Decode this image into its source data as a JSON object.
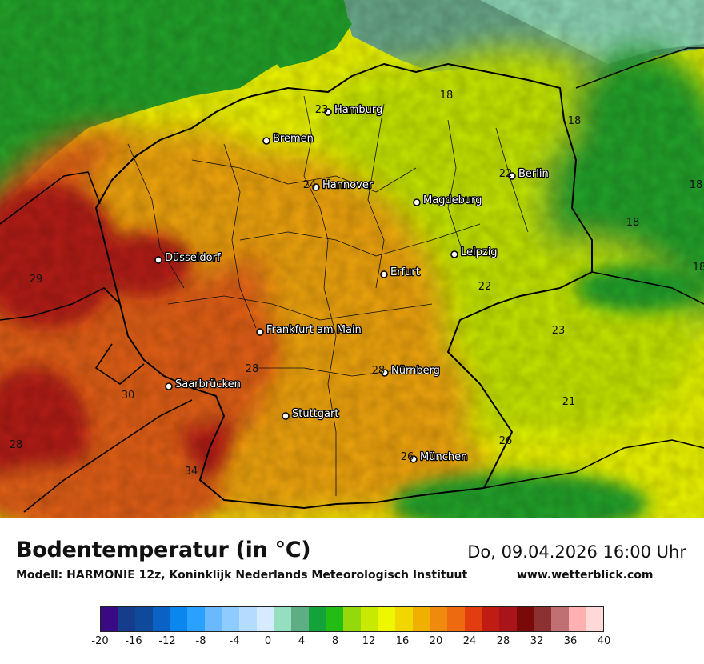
{
  "title": "Bodentemperatur (in °C)",
  "subtitle": "Modell: HARMONIE 12z, Koninklijk Nederlands Meteorologisch Instituut",
  "datetime": "Do, 09.04.2026 16:00 Uhr",
  "website": "www.wetterblick.com",
  "colors": {
    "sea": "#6aa98a",
    "sea_light": "#8fd8b8",
    "cold_green": "#22a32a",
    "yellow_green": "#c6e800",
    "yellow": "#eef700",
    "orange": "#f0a510",
    "red_orange": "#e35e12",
    "dark_red": "#b51a12",
    "border": "#000000"
  },
  "legend": {
    "ticks": [
      "-20",
      "-16",
      "-12",
      "-8",
      "-4",
      "0",
      "4",
      "8",
      "12",
      "16",
      "20",
      "24",
      "28",
      "32",
      "36",
      "40"
    ],
    "colors": [
      "#3a0a85",
      "#163c8c",
      "#0e4a99",
      "#0a63c4",
      "#0a86ee",
      "#2aa0ff",
      "#6ab9ff",
      "#8ecbff",
      "#b4dcff",
      "#d6ebff",
      "#93dfbf",
      "#5eae85",
      "#14a33a",
      "#22bc13",
      "#95d80c",
      "#c8ea00",
      "#eef700",
      "#f2d600",
      "#f0b000",
      "#f08a0e",
      "#ee6a10",
      "#e23c10",
      "#c01c14",
      "#a8141a",
      "#7a0a0a",
      "#8c3032",
      "#c07072",
      "#ffb0b0",
      "#ffd8d8"
    ]
  },
  "cities": [
    {
      "name": "Hamburg",
      "temp": "23"
    },
    {
      "name": "Bremen",
      "temp": ""
    },
    {
      "name": "Hannover",
      "temp": "24"
    },
    {
      "name": "Berlin",
      "temp": "22"
    },
    {
      "name": "Magdeburg",
      "temp": ""
    },
    {
      "name": "Düsseldorf",
      "temp": ""
    },
    {
      "name": "Leipzig",
      "temp": ""
    },
    {
      "name": "Erfurt",
      "temp": ""
    },
    {
      "name": "Frankfurt am Main",
      "temp": ""
    },
    {
      "name": "Nürnberg",
      "temp": "28"
    },
    {
      "name": "Saarbrücken",
      "temp": ""
    },
    {
      "name": "Stuttgart",
      "temp": ""
    },
    {
      "name": "München",
      "temp": "26"
    }
  ],
  "temp_labels": [
    "18",
    "18",
    "18",
    "18",
    "22",
    "23",
    "21",
    "26",
    "29",
    "30",
    "28",
    "28",
    "34",
    "18"
  ]
}
